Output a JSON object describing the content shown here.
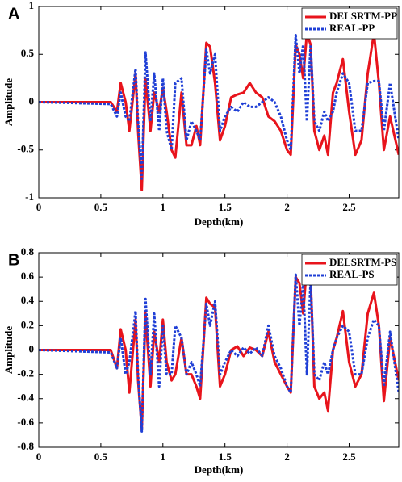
{
  "chart_data": [
    {
      "type": "line",
      "panel_label": "A",
      "xlabel": "Depth(km)",
      "ylabel": "Amplitude",
      "xlim": [
        0,
        2.9
      ],
      "ylim": [
        -1,
        1
      ],
      "xticks": [
        0,
        0.5,
        1,
        1.5,
        2,
        2.5
      ],
      "yticks": [
        -1,
        -0.5,
        0,
        0.5,
        1
      ],
      "legend": "upper right",
      "x": [
        0,
        0.58,
        0.63,
        0.66,
        0.7,
        0.73,
        0.78,
        0.8,
        0.83,
        0.86,
        0.9,
        0.93,
        0.97,
        1.0,
        1.03,
        1.07,
        1.1,
        1.15,
        1.19,
        1.23,
        1.27,
        1.3,
        1.35,
        1.38,
        1.42,
        1.46,
        1.5,
        1.55,
        1.6,
        1.65,
        1.7,
        1.75,
        1.8,
        1.85,
        1.9,
        1.95,
        2.0,
        2.03,
        2.07,
        2.1,
        2.13,
        2.16,
        2.19,
        2.22,
        2.26,
        2.3,
        2.33,
        2.37,
        2.4,
        2.45,
        2.5,
        2.55,
        2.6,
        2.65,
        2.7,
        2.74,
        2.78,
        2.83,
        2.9
      ],
      "series": [
        {
          "name": "DELSRTM-PP",
          "color": "#e8141c",
          "line_style": "solid",
          "values": [
            0,
            0,
            -0.1,
            0.2,
            0,
            -0.3,
            0.3,
            -0.3,
            -0.92,
            0.25,
            -0.3,
            0.1,
            -0.1,
            0.15,
            -0.1,
            -0.5,
            -0.58,
            0.1,
            -0.45,
            -0.45,
            -0.25,
            -0.45,
            0.62,
            0.58,
            0.2,
            -0.4,
            -0.25,
            0.05,
            0.08,
            0.1,
            0.2,
            0.1,
            0.05,
            -0.15,
            -0.2,
            -0.3,
            -0.5,
            -0.55,
            0.6,
            0.5,
            0.25,
            0.72,
            0.6,
            -0.3,
            -0.5,
            -0.35,
            -0.55,
            0.1,
            0.2,
            0.45,
            -0.1,
            -0.55,
            -0.4,
            0.3,
            0.72,
            0.2,
            -0.5,
            -0.15,
            -0.55
          ]
        },
        {
          "name": "REAL-PP",
          "color": "#1f3fd6",
          "line_style": "dotted",
          "values": [
            0,
            -0.02,
            -0.15,
            0.1,
            -0.15,
            -0.2,
            0.35,
            -0.2,
            -0.8,
            0.52,
            -0.2,
            0.3,
            -0.3,
            0.25,
            -0.3,
            -0.5,
            0.2,
            0.25,
            -0.4,
            -0.2,
            -0.3,
            -0.4,
            0.55,
            0.3,
            0.5,
            -0.3,
            -0.15,
            -0.05,
            -0.1,
            0,
            -0.05,
            -0.05,
            0,
            0.05,
            0,
            -0.15,
            -0.4,
            -0.5,
            0.7,
            0.3,
            0.6,
            -0.2,
            0.6,
            -0.2,
            -0.3,
            -0.1,
            -0.2,
            -0.1,
            0.1,
            0.3,
            0.2,
            -0.3,
            -0.3,
            0.2,
            0.22,
            0.22,
            -0.3,
            0.2,
            -0.4
          ]
        }
      ]
    },
    {
      "type": "line",
      "panel_label": "B",
      "xlabel": "Depth(km)",
      "ylabel": "Amplitude",
      "xlim": [
        0,
        2.9
      ],
      "ylim": [
        -0.8,
        0.8
      ],
      "xticks": [
        0,
        0.5,
        1,
        1.5,
        2,
        2.5
      ],
      "yticks": [
        -0.8,
        -0.6,
        -0.4,
        -0.2,
        0,
        0.2,
        0.4,
        0.6,
        0.8
      ],
      "legend": "upper right",
      "x": [
        0,
        0.58,
        0.63,
        0.66,
        0.7,
        0.73,
        0.78,
        0.8,
        0.83,
        0.86,
        0.9,
        0.93,
        0.97,
        1.0,
        1.03,
        1.07,
        1.1,
        1.15,
        1.19,
        1.23,
        1.27,
        1.3,
        1.35,
        1.38,
        1.42,
        1.46,
        1.5,
        1.55,
        1.6,
        1.65,
        1.7,
        1.75,
        1.8,
        1.85,
        1.9,
        1.95,
        2.0,
        2.03,
        2.07,
        2.1,
        2.13,
        2.16,
        2.19,
        2.22,
        2.26,
        2.3,
        2.33,
        2.37,
        2.4,
        2.45,
        2.5,
        2.55,
        2.6,
        2.65,
        2.7,
        2.74,
        2.78,
        2.83,
        2.9
      ],
      "series": [
        {
          "name": "DELSRTM-PS",
          "color": "#e8141c",
          "line_style": "solid",
          "values": [
            0,
            0,
            -0.15,
            0.17,
            0,
            -0.35,
            0.25,
            -0.25,
            -0.65,
            0.3,
            -0.3,
            0.15,
            -0.1,
            0.25,
            -0.1,
            -0.25,
            -0.2,
            0.1,
            -0.2,
            -0.2,
            -0.3,
            -0.4,
            0.43,
            0.38,
            0.35,
            -0.3,
            -0.2,
            0,
            0.03,
            -0.05,
            0.02,
            0,
            -0.05,
            0.15,
            -0.1,
            -0.2,
            -0.3,
            -0.35,
            0.6,
            0.55,
            0.3,
            0.7,
            0.6,
            -0.3,
            -0.4,
            -0.35,
            -0.5,
            0,
            0.1,
            0.32,
            -0.1,
            -0.3,
            -0.2,
            0.3,
            0.47,
            0.2,
            -0.42,
            0.1,
            -0.25
          ]
        },
        {
          "name": "REAL-PS",
          "color": "#1f3fd6",
          "line_style": "dotted",
          "values": [
            0,
            -0.02,
            -0.15,
            0.1,
            -0.2,
            -0.1,
            0.32,
            -0.2,
            -0.67,
            0.42,
            -0.2,
            0.3,
            -0.3,
            0.2,
            -0.2,
            -0.2,
            0.2,
            0.1,
            -0.2,
            -0.1,
            -0.2,
            -0.3,
            0.38,
            0.2,
            0.4,
            -0.2,
            -0.1,
            0,
            -0.05,
            0.02,
            -0.03,
            0.02,
            -0.05,
            0.2,
            -0.05,
            -0.15,
            -0.3,
            -0.35,
            0.62,
            0.2,
            0.55,
            -0.2,
            0.58,
            -0.2,
            -0.25,
            -0.1,
            -0.2,
            0,
            0.1,
            0.2,
            0.15,
            -0.2,
            -0.2,
            0.1,
            0.25,
            0.2,
            -0.3,
            0.15,
            -0.35
          ]
        }
      ]
    }
  ]
}
